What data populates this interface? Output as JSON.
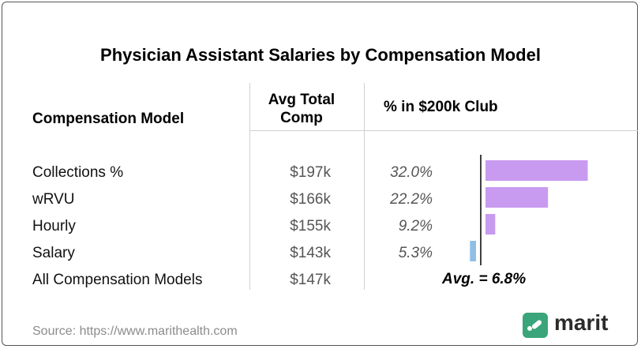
{
  "title": "Physician Assistant Salaries by Compensation Model",
  "headers": {
    "model": "Compensation Model",
    "comp_line1": "Avg Total",
    "comp_line2": "Comp",
    "pct": "% in $200k Club"
  },
  "rows": [
    {
      "label": "Collections %",
      "comp": "$197k",
      "pct": "32.0%"
    },
    {
      "label": "wRVU",
      "comp": "$166k",
      "pct": "22.2%"
    },
    {
      "label": "Hourly",
      "comp": "$155k",
      "pct": "9.2%"
    },
    {
      "label": "Salary",
      "comp": "$143k",
      "pct": "5.3%"
    },
    {
      "label": "All Compensation Models",
      "comp": "$147k",
      "pct": ""
    }
  ],
  "avg_label": "Avg. = 6.8%",
  "source": "Source: https://www.marithealth.com",
  "logo": {
    "text": "marit",
    "icon": "marit-logo-icon",
    "color": "#3aa57a"
  },
  "chart_data": {
    "type": "bar",
    "orientation": "horizontal",
    "categories": [
      "Collections %",
      "wRVU",
      "Hourly",
      "Salary"
    ],
    "values": [
      32.0,
      22.2,
      9.2,
      5.3
    ],
    "baseline": 6.8,
    "unit": "%",
    "colors": {
      "above": "#c89af0",
      "below": "#8fbfe6"
    }
  }
}
